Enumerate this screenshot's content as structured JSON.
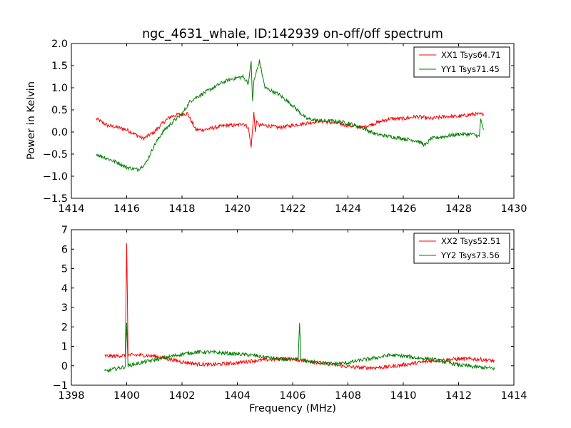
{
  "chart_data": {
    "title": "ngc_4631_whale, ID:142939 on-off/off spectrum",
    "xlabel": "Frequency (MHz)",
    "charts": [
      {
        "type": "line",
        "ylabel": "Power in Kelvin",
        "xlim": [
          1414,
          1430
        ],
        "ylim": [
          -1.5,
          2.0
        ],
        "xticks": [
          1414,
          1416,
          1418,
          1420,
          1422,
          1424,
          1426,
          1428,
          1430
        ],
        "xtick_labels": [
          "1414",
          "1416",
          "1418",
          "1420",
          "1422",
          "1424",
          "1426",
          "1428",
          "1430"
        ],
        "yticks": [
          -1.5,
          -1.0,
          -0.5,
          0.0,
          0.5,
          1.0,
          1.5,
          2.0
        ],
        "ytick_labels": [
          "−1.5",
          "−1.0",
          "−0.5",
          "0.0",
          "0.5",
          "1.0",
          "1.5",
          "2.0"
        ],
        "legend_position": "top-right",
        "series": [
          {
            "name": "XX1 Tsys64.71",
            "color": "#ff0000",
            "x": [
              1414.9,
              1415.3,
              1415.7,
              1416.0,
              1416.3,
              1416.6,
              1417.0,
              1417.3,
              1417.6,
              1417.9,
              1418.2,
              1418.5,
              1418.8,
              1419.2,
              1419.6,
              1420.0,
              1420.2,
              1420.4,
              1420.5,
              1420.6,
              1420.65,
              1420.7,
              1420.8,
              1421.0,
              1421.5,
              1422.0,
              1422.5,
              1423.0,
              1423.5,
              1424.0,
              1424.5,
              1425.0,
              1425.5,
              1426.0,
              1426.5,
              1427.0,
              1427.5,
              1428.0,
              1428.5,
              1428.9
            ],
            "y": [
              0.3,
              0.15,
              0.1,
              0.05,
              -0.05,
              -0.15,
              0.0,
              0.2,
              0.35,
              0.4,
              0.42,
              0.05,
              0.05,
              0.1,
              0.15,
              0.15,
              0.2,
              0.1,
              -0.35,
              0.45,
              0.0,
              0.25,
              0.15,
              0.15,
              0.1,
              0.15,
              0.2,
              0.25,
              0.2,
              0.15,
              0.1,
              0.2,
              0.3,
              0.3,
              0.35,
              0.3,
              0.35,
              0.35,
              0.4,
              0.4
            ]
          },
          {
            "name": "YY1 Tsys71.45",
            "color": "#007f00",
            "x": [
              1414.9,
              1415.3,
              1415.7,
              1416.0,
              1416.4,
              1416.7,
              1417.0,
              1417.3,
              1417.7,
              1418.0,
              1418.3,
              1418.7,
              1419.0,
              1419.4,
              1419.8,
              1420.2,
              1420.4,
              1420.5,
              1420.55,
              1420.6,
              1420.8,
              1421.0,
              1421.5,
              1422.0,
              1422.5,
              1423.0,
              1423.5,
              1424.0,
              1424.5,
              1425.0,
              1425.5,
              1426.0,
              1426.5,
              1426.8,
              1427.0,
              1427.5,
              1428.0,
              1428.5,
              1428.75,
              1428.8,
              1428.9
            ],
            "y": [
              -0.5,
              -0.6,
              -0.7,
              -0.8,
              -0.85,
              -0.7,
              -0.3,
              0.0,
              0.25,
              0.4,
              0.7,
              0.85,
              0.95,
              1.1,
              1.2,
              1.25,
              1.1,
              1.6,
              0.7,
              1.15,
              1.6,
              1.0,
              0.85,
              0.6,
              0.3,
              0.25,
              0.25,
              0.2,
              0.1,
              -0.05,
              -0.1,
              -0.15,
              -0.2,
              -0.3,
              -0.15,
              -0.1,
              -0.05,
              -0.05,
              -0.1,
              0.3,
              0.05
            ]
          }
        ]
      },
      {
        "type": "line",
        "ylabel": "",
        "xlim": [
          1398,
          1414
        ],
        "ylim": [
          -1,
          7
        ],
        "xticks": [
          1398,
          1400,
          1402,
          1404,
          1406,
          1408,
          1410,
          1412,
          1414
        ],
        "xtick_labels": [
          "1398",
          "1400",
          "1402",
          "1404",
          "1406",
          "1408",
          "1410",
          "1412",
          "1414"
        ],
        "yticks": [
          -1,
          0,
          1,
          2,
          3,
          4,
          5,
          6,
          7
        ],
        "ytick_labels": [
          "−1",
          "0",
          "1",
          "2",
          "3",
          "4",
          "5",
          "6",
          "7"
        ],
        "legend_position": "top-right",
        "series": [
          {
            "name": "XX2 Tsys52.51",
            "color": "#ff0000",
            "x": [
              1399.2,
              1399.6,
              1399.95,
              1400.0,
              1400.05,
              1400.5,
              1401.0,
              1401.5,
              1402.0,
              1402.5,
              1403.0,
              1403.5,
              1404.0,
              1404.5,
              1405.0,
              1405.5,
              1406.0,
              1406.5,
              1407.0,
              1407.5,
              1408.0,
              1408.5,
              1409.0,
              1409.5,
              1410.0,
              1410.5,
              1411.0,
              1411.5,
              1412.0,
              1412.5,
              1413.0,
              1413.3
            ],
            "y": [
              0.5,
              0.5,
              0.55,
              6.3,
              0.55,
              0.55,
              0.5,
              0.35,
              0.2,
              0.1,
              0.05,
              0.1,
              0.15,
              0.25,
              0.3,
              0.35,
              0.35,
              0.25,
              0.15,
              0.05,
              -0.05,
              -0.1,
              -0.1,
              -0.05,
              0.05,
              0.15,
              0.25,
              0.3,
              0.35,
              0.35,
              0.3,
              0.25
            ]
          },
          {
            "name": "YY2 Tsys73.56",
            "color": "#007f00",
            "x": [
              1399.2,
              1399.6,
              1399.95,
              1400.0,
              1400.05,
              1400.5,
              1401.0,
              1401.5,
              1402.0,
              1402.5,
              1403.0,
              1403.5,
              1404.0,
              1404.5,
              1405.0,
              1405.5,
              1406.0,
              1406.2,
              1406.25,
              1406.3,
              1406.5,
              1407.0,
              1407.5,
              1408.0,
              1408.5,
              1409.0,
              1409.5,
              1410.0,
              1410.5,
              1411.0,
              1411.5,
              1412.0,
              1412.5,
              1413.0,
              1413.3
            ],
            "y": [
              -0.3,
              -0.15,
              -0.05,
              2.2,
              0.0,
              0.15,
              0.3,
              0.45,
              0.6,
              0.7,
              0.7,
              0.65,
              0.6,
              0.55,
              0.45,
              0.35,
              0.3,
              0.3,
              2.2,
              0.3,
              0.25,
              0.15,
              0.1,
              0.15,
              0.3,
              0.4,
              0.55,
              0.5,
              0.4,
              0.35,
              0.2,
              0.05,
              -0.05,
              -0.1,
              -0.15
            ]
          }
        ]
      }
    ]
  }
}
